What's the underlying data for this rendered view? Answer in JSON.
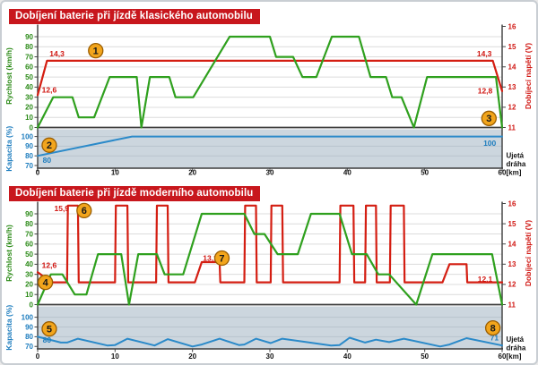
{
  "colors": {
    "header_bg": "#c8171d",
    "speed": "#2fa01e",
    "voltage": "#d41e12",
    "capacity": "#2b8ac9",
    "panel_bg": "#ccd6de",
    "marker_bg": "#f2a51c",
    "marker_border": "#9a5d00"
  },
  "chart_data": [
    {
      "type": "line",
      "title": "Dobíjení baterie při jízdě klasického automobilu",
      "axes": {
        "speed": {
          "label": "Rychlost (km/h)",
          "ticks": [
            90,
            80,
            70,
            60,
            50,
            40,
            30,
            20,
            10,
            0
          ],
          "range": [
            0,
            90
          ]
        },
        "capacity": {
          "label": "Kapacita (%)",
          "ticks": [
            100,
            90,
            80,
            70
          ],
          "range": [
            70,
            100
          ]
        },
        "voltage": {
          "label": "Dobíjecí napětí (V)",
          "ticks": [
            16,
            15,
            14,
            13,
            12,
            11
          ],
          "range": [
            11,
            16
          ]
        },
        "x": {
          "label": "Ujetá dráha [km]",
          "ticks": [
            0,
            10,
            20,
            30,
            40,
            50,
            60
          ],
          "range": [
            0,
            60
          ]
        }
      },
      "series": {
        "speed": {
          "points": [
            [
              0,
              0
            ],
            [
              2,
              30
            ],
            [
              4.5,
              30
            ],
            [
              5.3,
              10
            ],
            [
              7.3,
              10
            ],
            [
              9.3,
              50
            ],
            [
              12.8,
              50
            ],
            [
              13.4,
              0
            ],
            [
              14.5,
              50
            ],
            [
              17,
              50
            ],
            [
              17.8,
              30
            ],
            [
              20.1,
              30
            ],
            [
              24.8,
              90
            ],
            [
              30,
              90
            ],
            [
              30.8,
              70
            ],
            [
              33,
              70
            ],
            [
              34.2,
              50
            ],
            [
              36,
              50
            ],
            [
              38,
              90
            ],
            [
              41.5,
              90
            ],
            [
              43,
              50
            ],
            [
              45,
              50
            ],
            [
              45.8,
              30
            ],
            [
              47,
              30
            ],
            [
              48.6,
              0
            ],
            [
              50.3,
              50
            ],
            [
              59.2,
              50
            ],
            [
              60,
              0
            ]
          ]
        },
        "voltage": {
          "points": [
            [
              0,
              12.6
            ],
            [
              1.2,
              14.3
            ],
            [
              58.8,
              14.3
            ],
            [
              60,
              12.8
            ]
          ]
        },
        "capacity": {
          "points": [
            [
              0,
              80
            ],
            [
              12.2,
              100
            ],
            [
              60,
              100
            ]
          ]
        }
      },
      "annotations": {
        "value_labels": [
          {
            "text": "14,3",
            "km": 2.5,
            "axis": "v",
            "at": 14.65
          },
          {
            "text": "12,6",
            "km": 1.5,
            "axis": "v",
            "at": 12.85
          },
          {
            "text": "14,3",
            "km": 57.7,
            "axis": "v",
            "at": 14.65
          },
          {
            "text": "12,8",
            "km": 57.8,
            "axis": "v",
            "at": 12.82
          },
          {
            "text": "80",
            "km": 1.2,
            "axis": "cap",
            "at": 75.5
          },
          {
            "text": "100",
            "km": 58.4,
            "axis": "cap",
            "at": 93
          }
        ],
        "markers": [
          {
            "n": "1",
            "km": 7.5,
            "axis": "v",
            "at": 14.8
          },
          {
            "n": "2",
            "km": 1.5,
            "axis": "cap",
            "at": 91
          },
          {
            "n": "3",
            "km": 58.3,
            "axis": "v",
            "at": 11.45
          }
        ]
      }
    },
    {
      "type": "line",
      "title": "Dobíjení baterie při jízdě moderního automobilu",
      "axes": {
        "speed": {
          "label": "Rychlost (km/h)",
          "ticks": [
            90,
            80,
            70,
            60,
            50,
            40,
            30,
            20,
            10,
            0
          ],
          "range": [
            0,
            90
          ]
        },
        "capacity": {
          "label": "Kapacita (%)",
          "ticks": [
            100,
            90,
            80,
            70
          ],
          "range": [
            70,
            100
          ]
        },
        "voltage": {
          "label": "Dobíjecí napětí (V)",
          "ticks": [
            16,
            15,
            14,
            13,
            12,
            11
          ],
          "range": [
            11,
            16
          ]
        },
        "x": {
          "label": "Ujetá dráha [km]",
          "ticks": [
            0,
            10,
            20,
            30,
            40,
            50,
            60
          ],
          "range": [
            0,
            60
          ]
        }
      },
      "series": {
        "speed": {
          "points": [
            [
              0,
              0
            ],
            [
              1.7,
              30
            ],
            [
              3.2,
              30
            ],
            [
              4.8,
              10
            ],
            [
              6.3,
              10
            ],
            [
              7.8,
              50
            ],
            [
              10.8,
              50
            ],
            [
              11.8,
              0
            ],
            [
              13,
              50
            ],
            [
              15.4,
              50
            ],
            [
              16.4,
              30
            ],
            [
              18.8,
              30
            ],
            [
              21.2,
              90
            ],
            [
              26.7,
              90
            ],
            [
              28,
              70
            ],
            [
              29.3,
              70
            ],
            [
              31,
              50
            ],
            [
              33.6,
              50
            ],
            [
              35.3,
              90
            ],
            [
              39,
              90
            ],
            [
              40.6,
              50
            ],
            [
              42.5,
              50
            ],
            [
              44,
              30
            ],
            [
              45.4,
              30
            ],
            [
              48.9,
              0
            ],
            [
              51,
              50
            ],
            [
              58.7,
              50
            ],
            [
              60,
              0
            ]
          ]
        },
        "voltage": {
          "points": [
            [
              0,
              12.6
            ],
            [
              1.8,
              12.1
            ],
            [
              3.8,
              12.1
            ],
            [
              3.9,
              15.9
            ],
            [
              5.2,
              15.9
            ],
            [
              5.3,
              12.1
            ],
            [
              10,
              12.1
            ],
            [
              10.1,
              15.9
            ],
            [
              11.6,
              15.9
            ],
            [
              11.7,
              12.1
            ],
            [
              15.3,
              12.1
            ],
            [
              15.4,
              15.9
            ],
            [
              16.8,
              15.9
            ],
            [
              16.9,
              12.1
            ],
            [
              20.3,
              12.1
            ],
            [
              21.2,
              13.1
            ],
            [
              23.5,
              13.1
            ],
            [
              23.6,
              12.1
            ],
            [
              26.7,
              12.1
            ],
            [
              26.8,
              15.9
            ],
            [
              28.2,
              15.9
            ],
            [
              28.3,
              12.1
            ],
            [
              30.1,
              12.1
            ],
            [
              30.2,
              15.9
            ],
            [
              31.6,
              15.9
            ],
            [
              31.7,
              12.1
            ],
            [
              39,
              12.1
            ],
            [
              39.1,
              15.9
            ],
            [
              40.8,
              15.9
            ],
            [
              40.9,
              12.1
            ],
            [
              42.3,
              12.1
            ],
            [
              42.4,
              15.9
            ],
            [
              43.7,
              15.9
            ],
            [
              43.8,
              12.1
            ],
            [
              45.5,
              12.1
            ],
            [
              45.6,
              15.9
            ],
            [
              47.3,
              15.9
            ],
            [
              47.4,
              12.1
            ],
            [
              52.3,
              12.1
            ],
            [
              53.2,
              13
            ],
            [
              55.4,
              13
            ],
            [
              55.5,
              12.1
            ],
            [
              60,
              12.1
            ]
          ]
        },
        "capacity": {
          "points": [
            [
              0,
              80
            ],
            [
              3,
              74
            ],
            [
              3.8,
              74
            ],
            [
              5.2,
              78
            ],
            [
              9,
              71
            ],
            [
              10,
              71.5
            ],
            [
              11.6,
              78
            ],
            [
              15.1,
              71
            ],
            [
              16.8,
              77.5
            ],
            [
              20,
              70
            ],
            [
              21.2,
              72
            ],
            [
              23.5,
              78
            ],
            [
              26,
              71.5
            ],
            [
              26.7,
              72
            ],
            [
              28.2,
              78
            ],
            [
              30.1,
              73.5
            ],
            [
              31.6,
              78
            ],
            [
              37.9,
              71
            ],
            [
              39,
              71.5
            ],
            [
              40.3,
              79
            ],
            [
              42.3,
              74
            ],
            [
              43.7,
              77
            ],
            [
              45.4,
              74.5
            ],
            [
              47.3,
              78
            ],
            [
              52,
              70
            ],
            [
              53.2,
              72
            ],
            [
              55.4,
              78.5
            ],
            [
              60,
              71
            ]
          ]
        }
      },
      "annotations": {
        "value_labels": [
          {
            "text": "15,9",
            "km": 3.1,
            "axis": "v",
            "at": 15.75
          },
          {
            "text": "12,6",
            "km": 1.5,
            "axis": "v",
            "at": 12.95
          },
          {
            "text": "13,1",
            "km": 22.3,
            "axis": "v",
            "at": 13.3
          },
          {
            "text": "12,1",
            "km": 57.8,
            "axis": "v",
            "at": 12.27
          },
          {
            "text": "80",
            "km": 1.2,
            "axis": "cap",
            "at": 76.5
          },
          {
            "text": "71",
            "km": 59,
            "axis": "cap",
            "at": 79
          }
        ],
        "markers": [
          {
            "n": "4",
            "km": 1,
            "axis": "v",
            "at": 12.1
          },
          {
            "n": "5",
            "km": 1.5,
            "axis": "cap",
            "at": 88
          },
          {
            "n": "6",
            "km": 6,
            "axis": "v",
            "at": 15.65
          },
          {
            "n": "7",
            "km": 23.8,
            "axis": "v",
            "at": 13.3
          },
          {
            "n": "8",
            "km": 58.8,
            "axis": "cap",
            "at": 89
          }
        ]
      }
    }
  ]
}
